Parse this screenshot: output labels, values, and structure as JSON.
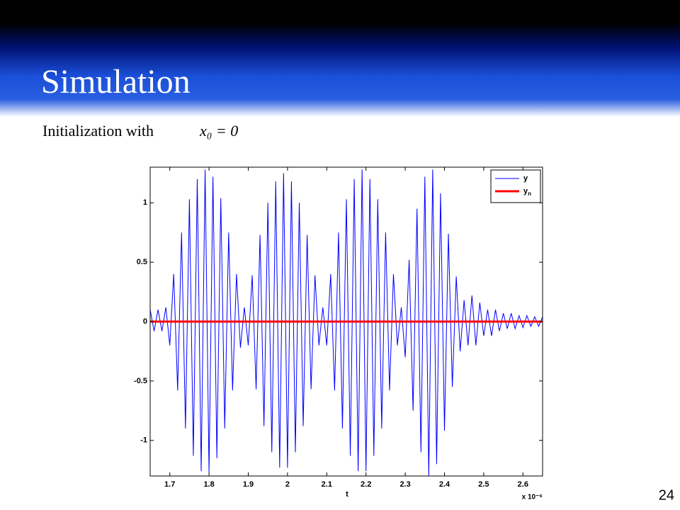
{
  "slide": {
    "title": "Simulation",
    "subtitle": "Initialization with",
    "math": "x₀ = 0",
    "page_number": 24
  },
  "chart_data": {
    "type": "line",
    "x": [
      1.65,
      1.66,
      1.67,
      1.68,
      1.69,
      1.7,
      1.71,
      1.72,
      1.73,
      1.74,
      1.75,
      1.76,
      1.77,
      1.78,
      1.79,
      1.8,
      1.81,
      1.82,
      1.83,
      1.84,
      1.85,
      1.86,
      1.87,
      1.88,
      1.89,
      1.9,
      1.91,
      1.92,
      1.93,
      1.94,
      1.95,
      1.96,
      1.97,
      1.98,
      1.99,
      2.0,
      2.01,
      2.02,
      2.03,
      2.04,
      2.05,
      2.06,
      2.07,
      2.08,
      2.09,
      2.1,
      2.11,
      2.12,
      2.13,
      2.14,
      2.15,
      2.16,
      2.17,
      2.18,
      2.19,
      2.2,
      2.21,
      2.22,
      2.23,
      2.24,
      2.25,
      2.26,
      2.27,
      2.28,
      2.29,
      2.3,
      2.31,
      2.32,
      2.33,
      2.34,
      2.35,
      2.36,
      2.37,
      2.38,
      2.39,
      2.4,
      2.41,
      2.42,
      2.43,
      2.44,
      2.45,
      2.46,
      2.47,
      2.48,
      2.49,
      2.5,
      2.51,
      2.52,
      2.53,
      2.54,
      2.55,
      2.56,
      2.57,
      2.58,
      2.59,
      2.6,
      2.61,
      2.62,
      2.63,
      2.64,
      2.65
    ],
    "series": [
      {
        "name": "y",
        "color": "#0000ff",
        "values": [
          0.1,
          -0.08,
          0.1,
          -0.08,
          0.12,
          -0.2,
          0.4,
          -0.58,
          0.75,
          -0.9,
          1.03,
          -1.13,
          1.2,
          -1.26,
          1.28,
          -1.27,
          1.22,
          -1.15,
          1.04,
          -0.9,
          0.75,
          -0.58,
          0.4,
          -0.22,
          0.12,
          -0.2,
          0.39,
          -0.57,
          0.73,
          -0.88,
          1.0,
          -1.1,
          1.18,
          -1.23,
          1.25,
          -1.23,
          1.18,
          -1.1,
          1.0,
          -0.88,
          0.73,
          -0.57,
          0.39,
          -0.2,
          0.12,
          -0.2,
          0.4,
          -0.58,
          0.75,
          -0.9,
          1.03,
          -1.13,
          1.2,
          -1.26,
          1.28,
          -1.26,
          1.2,
          -1.13,
          1.03,
          -0.9,
          0.75,
          -0.58,
          0.4,
          -0.2,
          0.12,
          -0.3,
          0.52,
          -0.75,
          0.95,
          -1.1,
          1.22,
          -1.3,
          1.28,
          -1.2,
          1.08,
          -0.92,
          0.74,
          -0.55,
          0.38,
          -0.25,
          0.18,
          -0.2,
          0.22,
          -0.2,
          0.16,
          -0.12,
          0.1,
          -0.12,
          0.1,
          -0.08,
          0.07,
          -0.06,
          0.07,
          -0.06,
          0.05,
          -0.05,
          0.05,
          -0.04,
          0.04,
          -0.04,
          0.04
        ]
      },
      {
        "name": "yn",
        "color": "#ff0000",
        "values": [
          0,
          0,
          0,
          0,
          0,
          0,
          0,
          0,
          0,
          0,
          0,
          0,
          0,
          0,
          0,
          0,
          0,
          0,
          0,
          0,
          0,
          0,
          0,
          0,
          0,
          0,
          0,
          0,
          0,
          0,
          0,
          0,
          0,
          0,
          0,
          0,
          0,
          0,
          0,
          0,
          0,
          0,
          0,
          0,
          0,
          0,
          0,
          0,
          0,
          0,
          0,
          0,
          0,
          0,
          0,
          0,
          0,
          0,
          0,
          0,
          0,
          0,
          0,
          0,
          0,
          0,
          0,
          0,
          0,
          0,
          0,
          0,
          0,
          0,
          0,
          0,
          0,
          0,
          0,
          0,
          0,
          0,
          0,
          0,
          0,
          0,
          0,
          0,
          0,
          0,
          0,
          0,
          0,
          0,
          0,
          0,
          0,
          0,
          0,
          0,
          0
        ]
      }
    ],
    "x_label": "t",
    "x_exponent": "x 10⁻⁶",
    "xlim": [
      1.65,
      2.65
    ],
    "xticks": [
      1.7,
      1.8,
      1.9,
      2,
      2.1,
      2.2,
      2.3,
      2.4,
      2.5,
      2.6
    ],
    "ylim": [
      -1.3,
      1.3
    ],
    "yticks": [
      -1,
      -0.5,
      0,
      0.5,
      1
    ],
    "legend": "upper right",
    "grid": false
  }
}
